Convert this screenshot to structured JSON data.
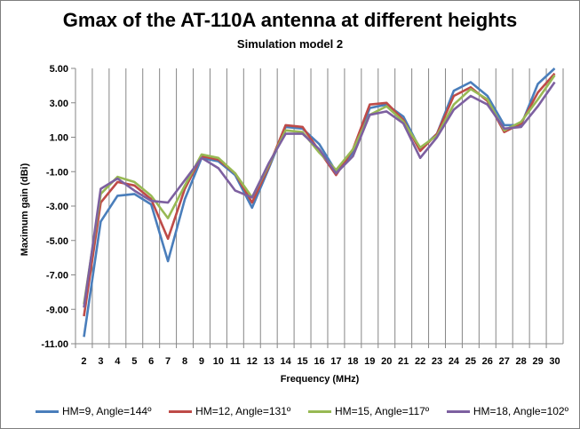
{
  "chart_data": {
    "type": "line",
    "title": "Gmax of the AT-110A antenna at different heights",
    "subtitle": "Simulation model 2",
    "xlabel": "Frequency (MHz)",
    "ylabel": "Maximum gain  (dBi)",
    "x": [
      2,
      3,
      4,
      5,
      6,
      7,
      8,
      9,
      10,
      11,
      12,
      13,
      14,
      15,
      16,
      17,
      18,
      19,
      20,
      21,
      22,
      23,
      24,
      25,
      26,
      27,
      28,
      29,
      30
    ],
    "ylim": [
      -11,
      5
    ],
    "yticks": [
      "5.00",
      "3.00",
      "1.00",
      "-1.00",
      "-3.00",
      "-5.00",
      "-7.00",
      "-9.00",
      "-11.00"
    ],
    "grid": "vertical",
    "legend_position": "bottom",
    "series": [
      {
        "name": "HM=9, Angle=144º",
        "color": "#4a7ebb",
        "values": [
          -10.6,
          -3.9,
          -2.4,
          -2.3,
          -2.9,
          -6.2,
          -2.6,
          -0.2,
          -0.4,
          -1.2,
          -3.1,
          -0.8,
          1.6,
          1.5,
          0.6,
          -1.0,
          0.1,
          2.7,
          2.9,
          2.2,
          0.3,
          1.2,
          3.7,
          4.2,
          3.4,
          1.7,
          1.7,
          4.1,
          5.0
        ]
      },
      {
        "name": "HM=12, Angle=131º",
        "color": "#be4b48",
        "values": [
          -9.4,
          -2.8,
          -1.6,
          -1.8,
          -2.6,
          -4.9,
          -2.0,
          -0.1,
          -0.3,
          -1.1,
          -2.8,
          -0.7,
          1.7,
          1.6,
          0.2,
          -1.2,
          0.3,
          2.9,
          3.0,
          2.0,
          0.2,
          1.2,
          3.4,
          3.9,
          3.1,
          1.3,
          1.8,
          3.6,
          4.7
        ]
      },
      {
        "name": "HM=15, Angle=117º",
        "color": "#98b954",
        "values": [
          -8.7,
          -2.3,
          -1.3,
          -1.6,
          -2.4,
          -3.7,
          -1.8,
          0.0,
          -0.2,
          -1.1,
          -2.5,
          -0.6,
          1.4,
          1.3,
          0.1,
          -0.9,
          0.3,
          2.3,
          2.8,
          1.9,
          0.4,
          1.1,
          2.9,
          3.8,
          3.2,
          1.4,
          1.9,
          3.2,
          4.6
        ]
      },
      {
        "name": "HM=18, Angle=102º",
        "color": "#7d60a0",
        "values": [
          -8.9,
          -2.0,
          -1.4,
          -2.1,
          -2.7,
          -2.8,
          -1.5,
          -0.2,
          -0.8,
          -2.1,
          -2.5,
          -0.5,
          1.2,
          1.2,
          0.3,
          -1.1,
          -0.1,
          2.3,
          2.5,
          1.8,
          -0.2,
          1.0,
          2.6,
          3.4,
          2.9,
          1.5,
          1.6,
          2.8,
          4.2
        ]
      }
    ]
  }
}
